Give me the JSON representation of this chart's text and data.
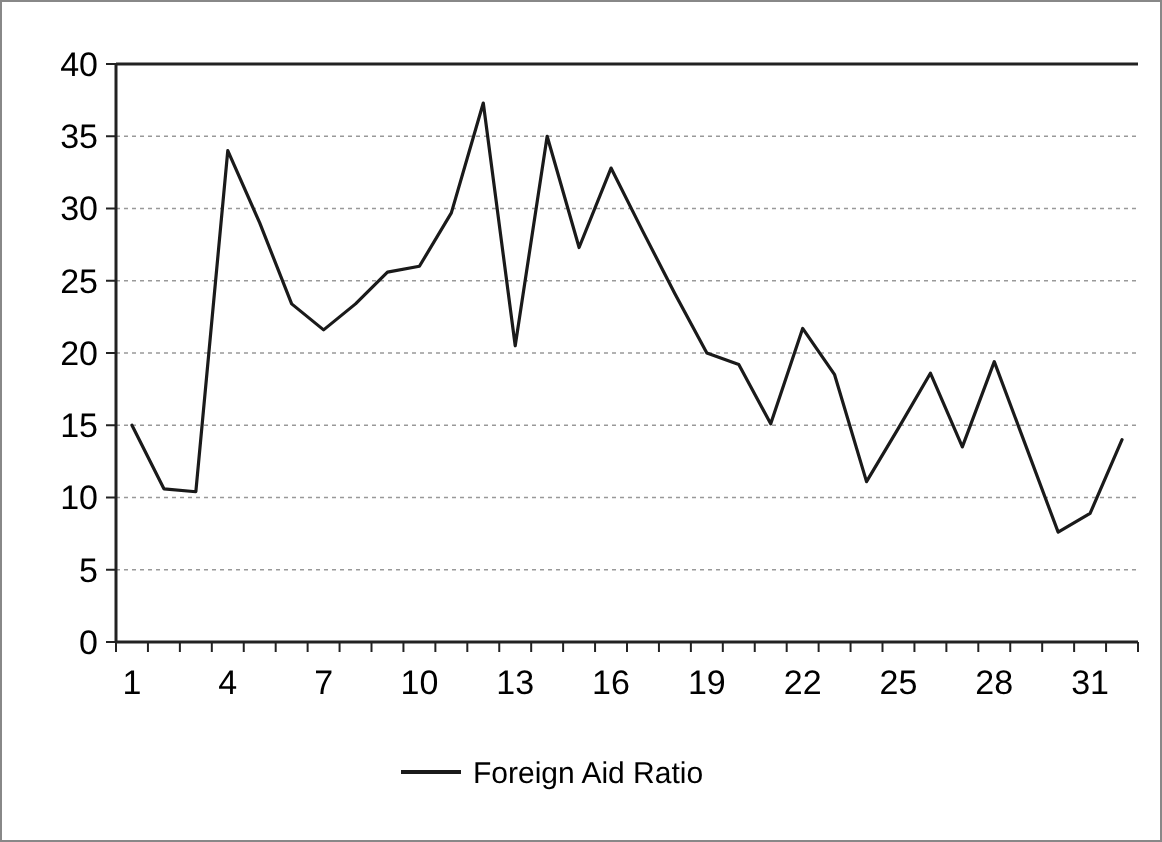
{
  "chart_data": {
    "type": "line",
    "categories": [
      "1",
      null,
      null,
      "4",
      null,
      null,
      "7",
      null,
      null,
      "10",
      null,
      null,
      "13",
      null,
      null,
      "16",
      null,
      null,
      "19",
      null,
      null,
      "22",
      null,
      null,
      "25",
      null,
      null,
      "28",
      null,
      null,
      "31",
      null
    ],
    "series": [
      {
        "name": "Foreign Aid Ratio",
        "color": "#1a1a1a",
        "values": [
          15,
          10.6,
          10.4,
          34,
          29,
          23.4,
          21.6,
          23.4,
          25.6,
          26,
          29.7,
          37.3,
          20.5,
          35,
          27.3,
          32.8,
          28.4,
          24.1,
          20,
          19.2,
          15.1,
          21.7,
          18.5,
          11.1,
          14.8,
          18.6,
          13.5,
          19.4,
          13.5,
          7.6,
          8.9,
          14
        ]
      }
    ],
    "ylim": [
      0,
      40
    ],
    "yticks": [
      0,
      5,
      10,
      15,
      20,
      25,
      30,
      35,
      40
    ],
    "grid": "y",
    "legend": "bottom",
    "marker": "none",
    "line_style": "solid"
  }
}
